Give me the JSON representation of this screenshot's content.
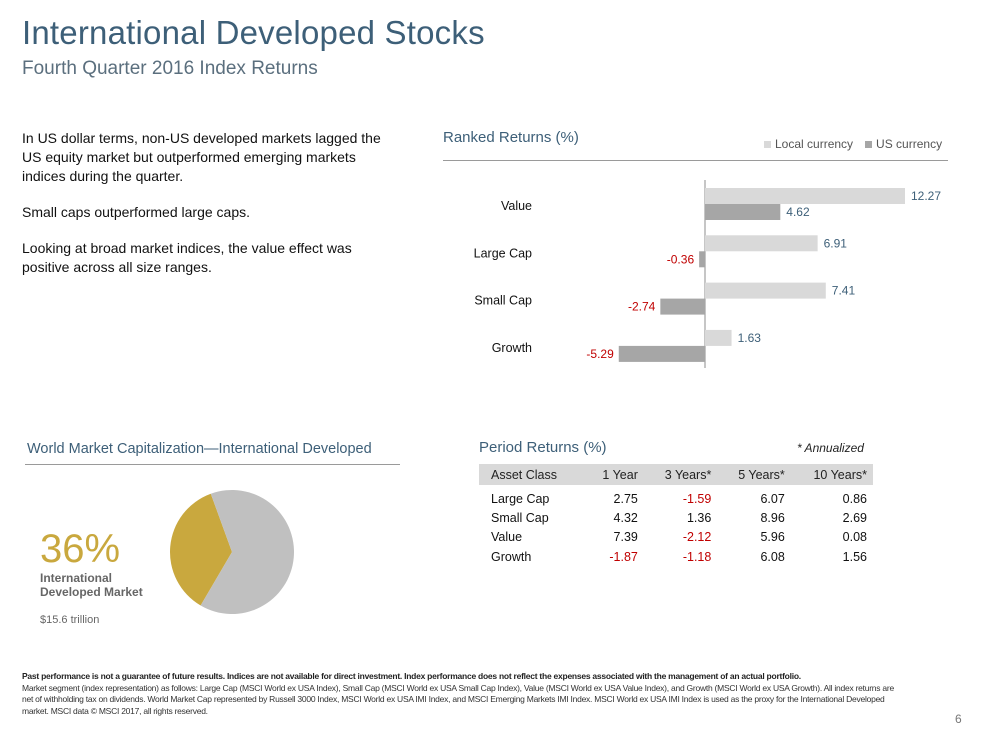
{
  "header": {
    "title": "International Developed Stocks",
    "subtitle": "Fourth Quarter 2016 Index Returns"
  },
  "bullets": [
    "In US dollar terms, non-US developed markets lagged the US equity market but outperformed emerging markets indices during the quarter.",
    "Small caps outperformed large caps.",
    "Looking at broad market indices, the value effect was positive across all size ranges."
  ],
  "ranked": {
    "heading": "Ranked Returns (%)",
    "legend": [
      {
        "label": "Local currency",
        "color": "#d9d9d9"
      },
      {
        "label": "US currency",
        "color": "#a6a6a6"
      }
    ]
  },
  "chart_data": [
    {
      "type": "bar",
      "orientation": "horizontal",
      "title": "Ranked Returns (%)",
      "categories": [
        "Value",
        "Large Cap",
        "Small Cap",
        "Growth"
      ],
      "series": [
        {
          "name": "Local currency",
          "color": "#d9d9d9",
          "values": [
            12.27,
            6.91,
            7.41,
            1.63
          ]
        },
        {
          "name": "US currency",
          "color": "#a6a6a6",
          "values": [
            4.62,
            -0.36,
            -2.74,
            -5.29
          ]
        }
      ],
      "xlim": [
        -7,
        14
      ],
      "legend": "top-right",
      "label_colors": {
        "positive": "#3d5f78",
        "negative": "#c00000"
      }
    },
    {
      "type": "pie",
      "title": "World Market Capitalization—International Developed",
      "slices": [
        {
          "label": "International Developed Market",
          "value": 36,
          "color": "#c9a83e"
        },
        {
          "label": "",
          "value": 64,
          "color": "#c0c0c0"
        }
      ]
    }
  ],
  "market_cap": {
    "heading": "World Market Capitalization—International Developed",
    "percent": "36%",
    "label": "International Developed Market",
    "value": "$15.6 trillion"
  },
  "period": {
    "heading": "Period Returns (%)",
    "note": "* Annualized",
    "columns": [
      "Asset Class",
      "1 Year",
      "3 Years*",
      "5 Years*",
      "10 Years*"
    ],
    "rows": [
      [
        "Large Cap",
        "2.75",
        "-1.59",
        "6.07",
        "0.86"
      ],
      [
        "Small Cap",
        "4.32",
        "1.36",
        "8.96",
        "2.69"
      ],
      [
        "Value",
        "7.39",
        "-2.12",
        "5.96",
        "0.08"
      ],
      [
        "Growth",
        "-1.87",
        "-1.18",
        "6.08",
        "1.56"
      ]
    ]
  },
  "footer": {
    "lead": "Past performance is not a guarantee of future results. Indices are not available for direct investment. Index performance does not reflect the expenses associated with the management of an actual portfolio.",
    "body": "Market segment (index representation) as follows: Large Cap (MSCI World ex USA Index), Small Cap (MSCI World ex USA Small Cap Index), Value (MSCI World ex USA Value Index), and Growth (MSCI World ex USA Growth). All index returns are net of withholding tax on dividends. World Market Cap represented by Russell 3000 Index, MSCI World ex USA IMI Index, and MSCI Emerging Markets IMI Index. MSCI World ex USA IMI Index is used as the proxy for the International Developed market. MSCI data © MSCI 2017, all rights reserved.",
    "page": "6"
  }
}
